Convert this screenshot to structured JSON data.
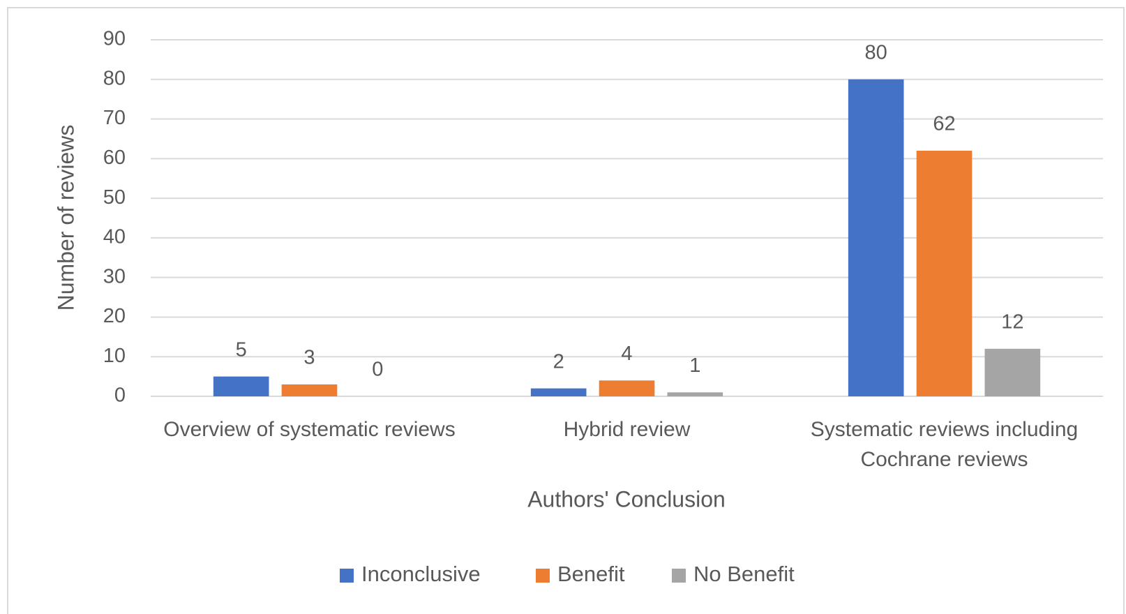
{
  "chart_data": {
    "type": "bar",
    "categories": [
      "Overview of systematic reviews",
      "Hybrid review",
      "Systematic reviews including Cochrane reviews"
    ],
    "series": [
      {
        "name": "Inconclusive",
        "color": "#4472c4",
        "values": [
          5,
          2,
          80
        ]
      },
      {
        "name": "Benefit",
        "color": "#ed7d31",
        "values": [
          3,
          4,
          62
        ]
      },
      {
        "name": "No Benefit",
        "color": "#a5a5a5",
        "values": [
          0,
          1,
          12
        ]
      }
    ],
    "ylabel": "Number of reviews",
    "xlabel": "Authors' Conclusion",
    "ylim": [
      0,
      90
    ],
    "yticks": [
      0,
      10,
      20,
      30,
      40,
      50,
      60,
      70,
      80,
      90
    ],
    "grid": true,
    "legend": "bottom"
  }
}
